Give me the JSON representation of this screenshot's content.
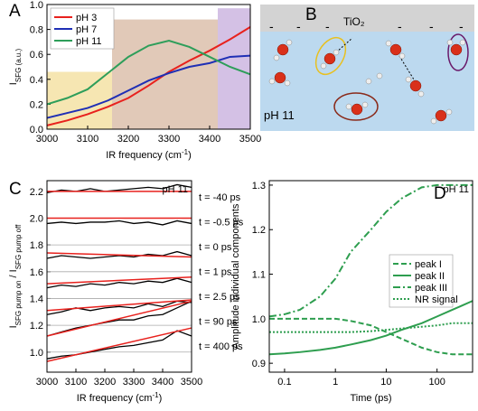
{
  "chart_data": [
    {
      "type": "line",
      "panel": "A",
      "x": [
        3000,
        3050,
        3100,
        3150,
        3200,
        3250,
        3300,
        3350,
        3400,
        3450,
        3500
      ],
      "series": [
        {
          "name": "pH 3",
          "color": "#e8211d",
          "values": [
            0.03,
            0.07,
            0.12,
            0.18,
            0.25,
            0.35,
            0.46,
            0.55,
            0.63,
            0.72,
            0.82
          ]
        },
        {
          "name": "pH 7",
          "color": "#1f2fb5",
          "values": [
            0.09,
            0.13,
            0.17,
            0.23,
            0.31,
            0.39,
            0.45,
            0.5,
            0.53,
            0.58,
            0.59
          ]
        },
        {
          "name": "pH 11",
          "color": "#2e9e5a",
          "values": [
            0.2,
            0.25,
            0.32,
            0.45,
            0.58,
            0.67,
            0.71,
            0.66,
            0.58,
            0.5,
            0.44
          ]
        }
      ],
      "regions": [
        {
          "x": [
            3000,
            3160
          ],
          "top": 0.46,
          "color": "#f5e2a4"
        },
        {
          "x": [
            3160,
            3420
          ],
          "top": 0.88,
          "color": "#dcbfab"
        },
        {
          "x": [
            3420,
            3500
          ],
          "top": 0.97,
          "color": "#cdb6e0"
        }
      ],
      "xlim": [
        3000,
        3500
      ],
      "xticks": [
        3000,
        3100,
        3200,
        3300,
        3400,
        3500
      ],
      "ylim": [
        0,
        1.0
      ],
      "yticks": [
        {
          "value": 0,
          "label": "0.0"
        },
        0.2,
        0.4,
        0.6,
        0.8,
        {
          "value": 1,
          "label": "1.0"
        }
      ],
      "xlabel": [
        "IR frequency (cm",
        "-1",
        ")"
      ],
      "ylabel": [
        "I",
        "SFG (a.u.)"
      ],
      "legend": "upper left",
      "grid": false
    },
    {
      "type": "line",
      "panel": "C",
      "x": [
        3000,
        3050,
        3100,
        3150,
        3200,
        3250,
        3300,
        3350,
        3400,
        3450,
        3500
      ],
      "fit_x": [
        3000,
        3500
      ],
      "fit_color": "#e8211d",
      "series": [
        {
          "name": "t = -40 ps",
          "color": "#000000",
          "values": [
            2.19,
            2.21,
            2.2,
            2.22,
            2.2,
            2.21,
            2.22,
            2.23,
            2.22,
            2.25,
            2.23
          ],
          "fit": [
            2.2,
            2.2
          ]
        },
        {
          "name": "t = -0.5 ps",
          "color": "#000000",
          "values": [
            1.96,
            1.97,
            1.96,
            1.97,
            1.97,
            1.98,
            1.96,
            1.97,
            1.95,
            1.98,
            1.96
          ],
          "fit": [
            2.0,
            2.0
          ]
        },
        {
          "name": "t = 0 ps",
          "color": "#000000",
          "values": [
            1.7,
            1.72,
            1.71,
            1.7,
            1.71,
            1.72,
            1.71,
            1.73,
            1.72,
            1.75,
            1.72
          ],
          "fit": [
            1.74,
            1.71
          ]
        },
        {
          "name": "t = 1 ps",
          "color": "#000000",
          "values": [
            1.48,
            1.5,
            1.49,
            1.51,
            1.5,
            1.52,
            1.51,
            1.53,
            1.52,
            1.55,
            1.52
          ],
          "fit": [
            1.51,
            1.56
          ]
        },
        {
          "name": "t = 2.5 ps",
          "color": "#000000",
          "values": [
            1.28,
            1.3,
            1.33,
            1.31,
            1.33,
            1.34,
            1.33,
            1.36,
            1.34,
            1.38,
            1.37
          ],
          "fit": [
            1.31,
            1.39
          ]
        },
        {
          "name": "t = 90 ps",
          "color": "#000000",
          "values": [
            1.12,
            1.15,
            1.18,
            1.2,
            1.22,
            1.24,
            1.24,
            1.27,
            1.28,
            1.33,
            1.38
          ],
          "fit": [
            1.12,
            1.38
          ]
        },
        {
          "name": "t = 400 ps",
          "color": "#000000",
          "values": [
            0.95,
            0.97,
            0.98,
            1.0,
            1.02,
            1.04,
            1.05,
            1.07,
            1.09,
            1.16,
            1.12
          ],
          "fit": [
            0.93,
            1.18
          ]
        }
      ],
      "xlim": [
        3000,
        3500
      ],
      "xticks": [
        3000,
        3100,
        3200,
        3300,
        3400,
        3500
      ],
      "ylim": [
        0.85,
        2.28
      ],
      "yticks": [
        {
          "value": 1,
          "label": "1.0"
        },
        1.2,
        1.4,
        1.6,
        1.8,
        {
          "value": 2,
          "label": "2.0"
        },
        2.2
      ],
      "xlabel": [
        "IR frequency (cm",
        "-1",
        ")"
      ],
      "ylabel": [
        "I",
        "SFG pump on",
        " / I",
        "SFG pump off"
      ],
      "annotation": "pH 11",
      "grid": true
    },
    {
      "type": "line",
      "panel": "D",
      "xscale": "log",
      "x": [
        0.05,
        0.1,
        0.2,
        0.5,
        1,
        2,
        5,
        10,
        20,
        50,
        100,
        200,
        500
      ],
      "series": [
        {
          "name": "peak I",
          "color": "#2e9e4f",
          "dash": "dashed",
          "values": [
            1.0,
            1.0,
            1.0,
            1.0,
            1.0,
            0.995,
            0.985,
            0.97,
            0.955,
            0.935,
            0.925,
            0.92,
            0.92
          ]
        },
        {
          "name": "peak II",
          "color": "#2e9e4f",
          "dash": "solid",
          "values": [
            0.92,
            0.922,
            0.925,
            0.93,
            0.935,
            0.942,
            0.952,
            0.962,
            0.975,
            0.99,
            1.005,
            1.02,
            1.04
          ]
        },
        {
          "name": "peak III",
          "color": "#2e9e4f",
          "dash": "dashdot",
          "values": [
            1.005,
            1.01,
            1.02,
            1.05,
            1.09,
            1.15,
            1.2,
            1.24,
            1.27,
            1.295,
            1.3,
            1.3,
            1.3
          ]
        },
        {
          "name": "NR signal",
          "color": "#2e9e4f",
          "dash": "dotted",
          "values": [
            0.97,
            0.97,
            0.97,
            0.97,
            0.97,
            0.97,
            0.972,
            0.975,
            0.978,
            0.982,
            0.985,
            0.99,
            0.99
          ]
        }
      ],
      "xlim": [
        0.05,
        500
      ],
      "xticks": [
        0.1,
        1,
        10,
        100
      ],
      "ylim": [
        0.88,
        1.31
      ],
      "yticks": [
        0.9,
        {
          "value": 1,
          "label": "1.0"
        },
        1.1,
        1.2,
        1.3
      ],
      "xlabel": [
        "Time (ps)"
      ],
      "ylabel": [
        "Amplitude individual components"
      ],
      "annotation": "pH 11",
      "legend": "center right",
      "grid": false
    }
  ],
  "diagram": {
    "panel": "B",
    "surface": "TiO₂",
    "solution": "pH 11",
    "charges": [
      "-",
      "-",
      "-",
      "-",
      "-",
      "-"
    ]
  }
}
